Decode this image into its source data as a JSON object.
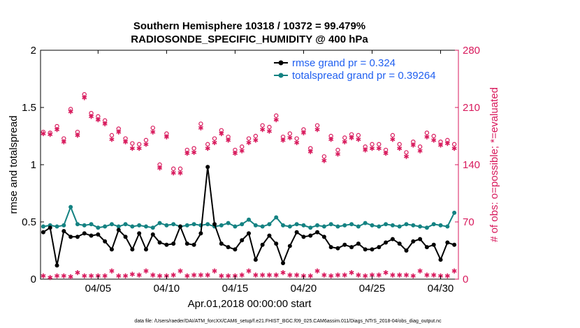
{
  "chart_data": {
    "type": "line",
    "title_line1": "Southern Hemisphere 10318 / 10372 = 99.479%",
    "title_line2": "RADIOSONDE_SPECIFIC_HUMIDITY @ 400 hPa",
    "xlabel": "Apr.01,2018 00:00:00 start",
    "ylabel_left": "rmse and totalspread",
    "ylabel_right": "# of obs: o=possible; *=evaluated",
    "footer": "data file: /Users/raeder/DAI/ATM_forcXX/CAM6_setup/f.e21.FHIST_BGC.f09_025.CAM6assim.011/Diags_NTrS_2018-04/obs_diag_output.nc",
    "xlim": [
      0.8,
      31.3
    ],
    "ylim_left": [
      0,
      2
    ],
    "ylim_right": [
      0,
      280
    ],
    "x_ticks": [
      {
        "x": 5,
        "label": "04/05"
      },
      {
        "x": 10,
        "label": "04/10"
      },
      {
        "x": 15,
        "label": "04/15"
      },
      {
        "x": 20,
        "label": "04/20"
      },
      {
        "x": 25,
        "label": "04/25"
      },
      {
        "x": 30,
        "label": "04/30"
      }
    ],
    "y_ticks_left": [
      {
        "v": 0,
        "label": "0"
      },
      {
        "v": 0.5,
        "label": "0.5"
      },
      {
        "v": 1,
        "label": "1"
      },
      {
        "v": 1.5,
        "label": "1.5"
      },
      {
        "v": 2,
        "label": "2"
      }
    ],
    "y_ticks_right": [
      {
        "v": 0,
        "label": "0"
      },
      {
        "v": 70,
        "label": "70"
      },
      {
        "v": 140,
        "label": "140"
      },
      {
        "v": 210,
        "label": "210"
      },
      {
        "v": 280,
        "label": "280"
      }
    ],
    "colors": {
      "rmse": "#000000",
      "spread": "#148282",
      "obs": "#d8195c",
      "legend_text": "#1f5ff0",
      "right_axis": "#d8195c"
    },
    "legend": [
      {
        "series": "rmse",
        "label": "rmse grand pr = 0.324"
      },
      {
        "series": "spread",
        "label": "totalspread grand pr = 0.39264"
      }
    ],
    "x": [
      1,
      1.5,
      2,
      2.5,
      3,
      3.5,
      4,
      4.5,
      5,
      5.5,
      6,
      6.5,
      7,
      7.5,
      8,
      8.5,
      9,
      9.5,
      10,
      10.5,
      11,
      11.5,
      12,
      12.5,
      13,
      13.5,
      14,
      14.5,
      15,
      15.5,
      16,
      16.5,
      17,
      17.5,
      18,
      18.5,
      19,
      19.5,
      20,
      20.5,
      21,
      21.5,
      22,
      22.5,
      23,
      23.5,
      24,
      24.5,
      25,
      25.5,
      26,
      26.5,
      27,
      27.5,
      28,
      28.5,
      29,
      29.5,
      30,
      30.5,
      31
    ],
    "series": [
      {
        "name": "rmse",
        "values": [
          0.41,
          0.45,
          0.12,
          0.42,
          0.37,
          0.37,
          0.4,
          0.38,
          0.39,
          0.33,
          0.26,
          0.43,
          0.37,
          0.26,
          0.4,
          0.26,
          0.39,
          0.32,
          0.3,
          0.31,
          0.46,
          0.31,
          0.3,
          0.4,
          0.98,
          0.48,
          0.31,
          0.28,
          0.26,
          0.34,
          0.4,
          0.17,
          0.3,
          0.38,
          0.31,
          0.14,
          0.29,
          0.41,
          0.37,
          0.38,
          0.41,
          0.37,
          0.28,
          0.27,
          0.3,
          0.28,
          0.31,
          0.26,
          0.26,
          0.28,
          0.32,
          0.35,
          0.31,
          0.25,
          0.33,
          0.35,
          0.28,
          0.3,
          0.17,
          0.32,
          0.3
        ]
      },
      {
        "name": "spread",
        "values": [
          0.46,
          0.47,
          0.46,
          0.47,
          0.63,
          0.48,
          0.47,
          0.48,
          0.45,
          0.46,
          0.48,
          0.46,
          0.48,
          0.46,
          0.47,
          0.46,
          0.45,
          0.49,
          0.47,
          0.48,
          0.46,
          0.47,
          0.48,
          0.47,
          0.48,
          0.46,
          0.47,
          0.49,
          0.46,
          0.48,
          0.52,
          0.47,
          0.46,
          0.48,
          0.54,
          0.47,
          0.46,
          0.48,
          0.47,
          0.45,
          0.47,
          0.46,
          0.48,
          0.46,
          0.47,
          0.48,
          0.46,
          0.49,
          0.47,
          0.46,
          0.48,
          0.47,
          0.46,
          0.48,
          0.47,
          0.46,
          0.45,
          0.48,
          0.47,
          0.46,
          0.58
        ]
      },
      {
        "name": "obs_possible",
        "values": [
          180,
          179,
          187,
          172,
          208,
          180,
          226,
          203,
          199,
          194,
          176,
          184,
          172,
          166,
          165,
          170,
          185,
          140,
          178,
          135,
          135,
          158,
          160,
          190,
          165,
          172,
          182,
          174,
          158,
          162,
          172,
          175,
          188,
          186,
          200,
          174,
          178,
          172,
          183,
          160,
          188,
          150,
          175,
          158,
          173,
          177,
          176,
          162,
          165,
          165,
          158,
          176,
          165,
          155,
          168,
          162,
          179,
          175,
          168,
          170,
          165
        ]
      },
      {
        "name": "obs_evaluated",
        "values": [
          178,
          177,
          183,
          168,
          205,
          176,
          222,
          199,
          195,
          190,
          171,
          180,
          168,
          160,
          160,
          165,
          180,
          136,
          174,
          130,
          130,
          154,
          155,
          185,
          160,
          167,
          178,
          170,
          154,
          157,
          167,
          170,
          183,
          181,
          195,
          170,
          173,
          167,
          179,
          156,
          183,
          145,
          171,
          153,
          168,
          173,
          171,
          158,
          160,
          160,
          154,
          171,
          160,
          150,
          164,
          157,
          174,
          170,
          164,
          166,
          160
        ]
      }
    ]
  }
}
